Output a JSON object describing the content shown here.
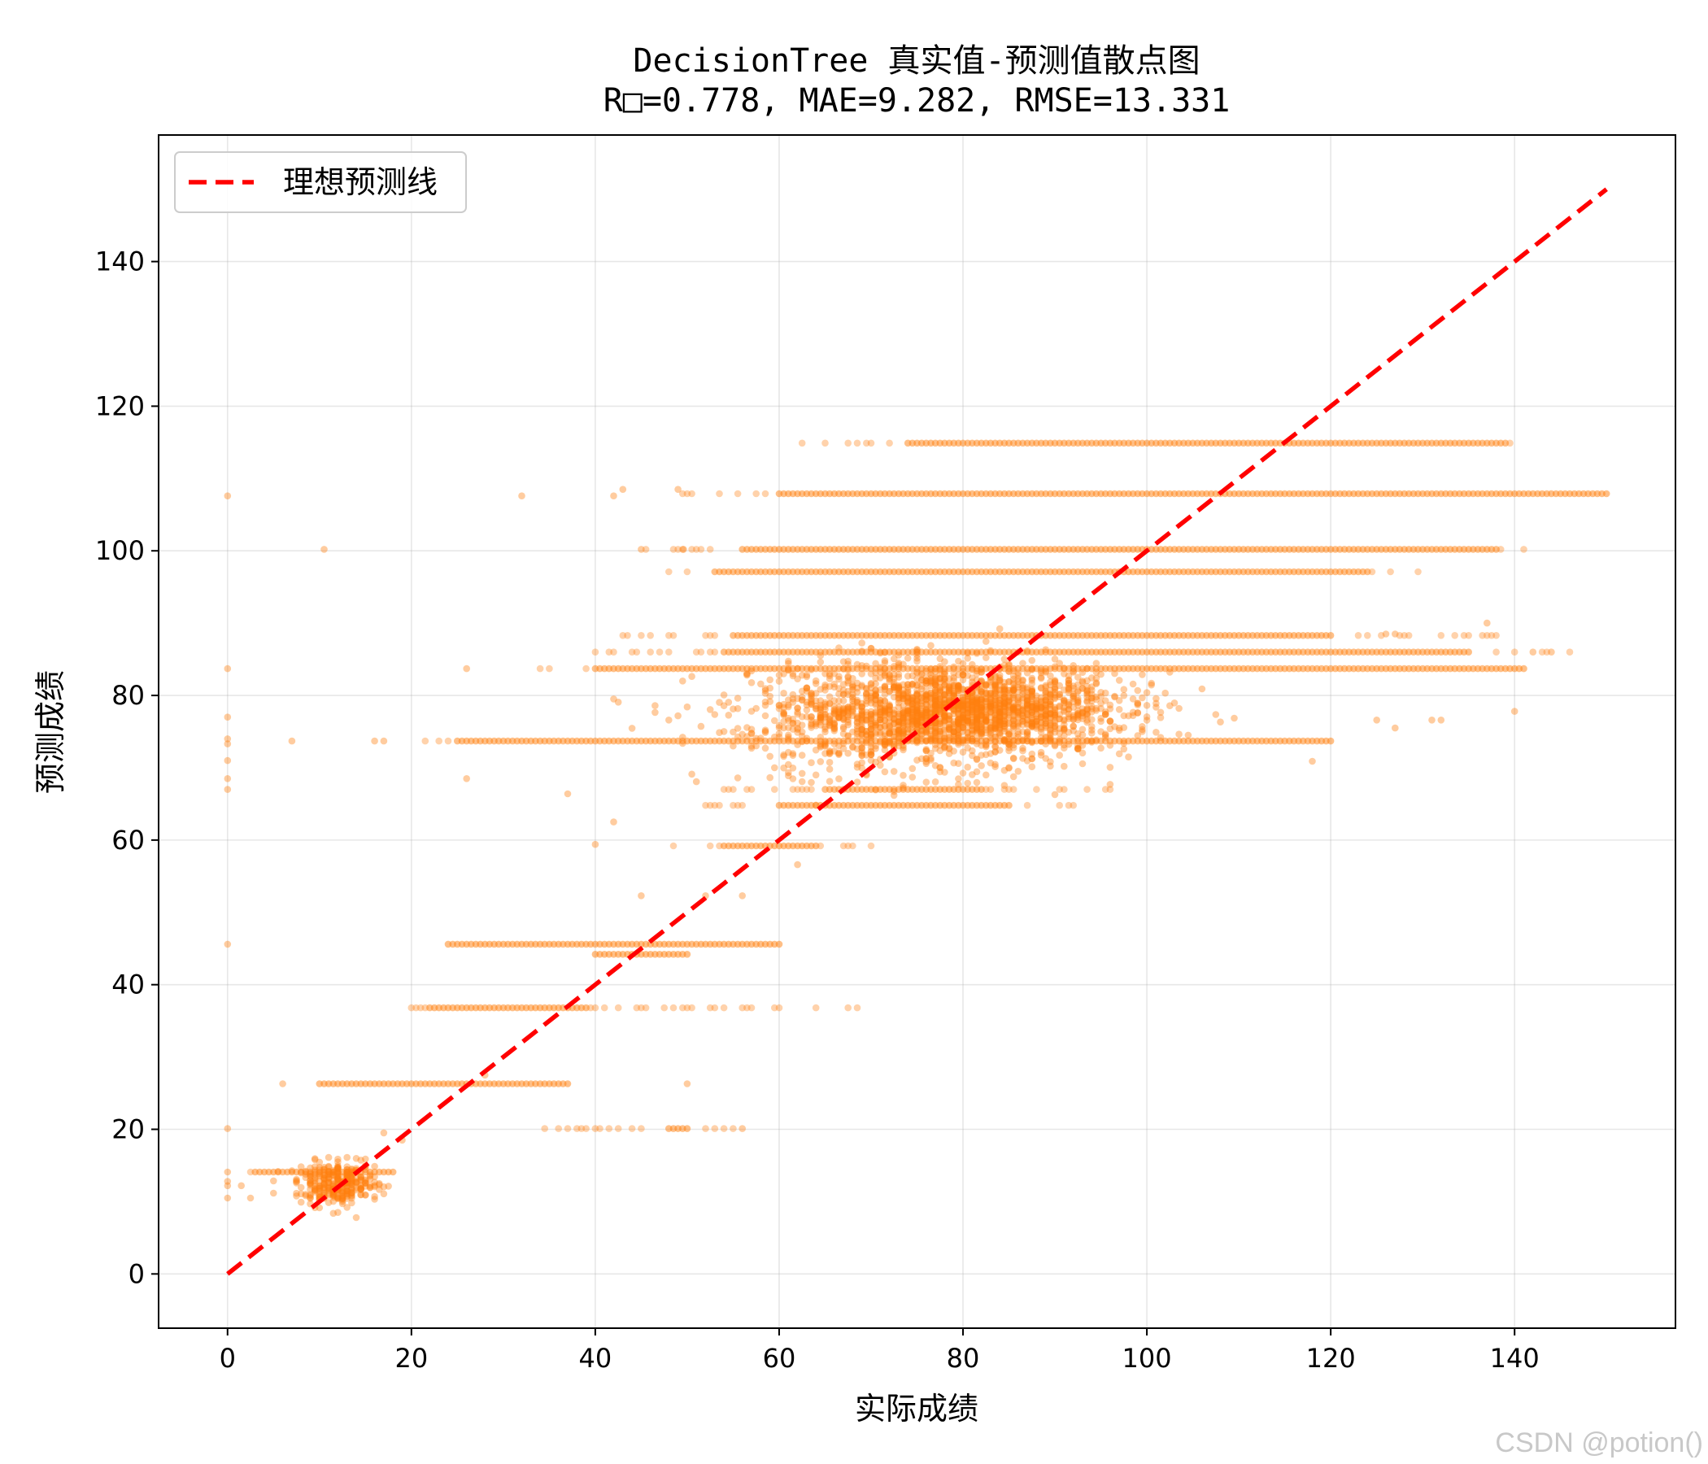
{
  "chart_data": {
    "type": "scatter",
    "title": "DecisionTree 真实值-预测值散点图",
    "subtitle": "R□=0.778, MAE=9.282, RMSE=13.331",
    "xlabel": "实际成绩",
    "ylabel": "预测成绩",
    "xlim": [
      -7.5,
      157.5
    ],
    "ylim": [
      -7.5,
      157.5
    ],
    "xticks": [
      0,
      20,
      40,
      60,
      80,
      100,
      120,
      140
    ],
    "yticks": [
      0,
      20,
      40,
      60,
      80,
      100,
      120,
      140
    ],
    "grid": true,
    "legend_position": "top-left",
    "legend": [
      {
        "name": "理想预测线",
        "color": "#ff0000",
        "style": "dashed"
      }
    ],
    "ideal_line": {
      "x": [
        0,
        150
      ],
      "y": [
        0,
        150
      ]
    },
    "point_color": "#ff7f0e",
    "bands": [
      {
        "y": 114.9,
        "x_from": 62,
        "x_to": 142,
        "dense_from": 74,
        "dense_to": 139
      },
      {
        "y": 107.9,
        "x_from": 49,
        "x_to": 150,
        "dense_from": 60,
        "dense_to": 150
      },
      {
        "y": 100.2,
        "x_from": 45,
        "x_to": 141,
        "dense_from": 56,
        "dense_to": 138
      },
      {
        "y": 97.1,
        "x_from": 47,
        "x_to": 130,
        "dense_from": 53,
        "dense_to": 124
      },
      {
        "y": 88.3,
        "x_from": 43,
        "x_to": 138,
        "dense_from": 55,
        "dense_to": 120
      },
      {
        "y": 86.0,
        "x_from": 38,
        "x_to": 146,
        "dense_from": 54,
        "dense_to": 135
      },
      {
        "y": 83.7,
        "x_from": 33,
        "x_to": 141,
        "dense_from": 40,
        "dense_to": 141
      },
      {
        "y": 73.7,
        "x_from": 20,
        "x_to": 120,
        "dense_from": 25,
        "dense_to": 120
      },
      {
        "y": 67.0,
        "x_from": 52,
        "x_to": 100,
        "dense_from": 65,
        "dense_to": 82
      },
      {
        "y": 64.8,
        "x_from": 50,
        "x_to": 92,
        "dense_from": 60,
        "dense_to": 85
      },
      {
        "y": 59.2,
        "x_from": 47,
        "x_to": 70,
        "dense_from": 54,
        "dense_to": 64
      },
      {
        "y": 45.6,
        "x_from": 24,
        "x_to": 60,
        "dense_from": 24,
        "dense_to": 60
      },
      {
        "y": 44.2,
        "x_from": 40,
        "x_to": 50,
        "dense_from": 40,
        "dense_to": 50
      },
      {
        "y": 36.8,
        "x_from": 20,
        "x_to": 70,
        "dense_from": 22,
        "dense_to": 39
      },
      {
        "y": 26.3,
        "x_from": 6,
        "x_to": 37,
        "dense_from": 10,
        "dense_to": 37
      },
      {
        "y": 20.1,
        "x_from": 33,
        "x_to": 56,
        "dense_from": 48,
        "dense_to": 50
      },
      {
        "y": 14.1,
        "x_from": 0,
        "x_to": 18,
        "dense_from": 3,
        "dense_to": 18
      }
    ],
    "clusters": [
      {
        "cx": 80,
        "cy": 78,
        "sx": 9,
        "sy": 3,
        "n": 1800
      },
      {
        "cx": 72,
        "cy": 76,
        "sx": 10,
        "sy": 4,
        "n": 500
      },
      {
        "cx": 12,
        "cy": 12.5,
        "sx": 2.2,
        "sy": 1.4,
        "n": 320
      }
    ],
    "outliers": [
      [
        0,
        107.6
      ],
      [
        10.5,
        100.2
      ],
      [
        0,
        83.7
      ],
      [
        0,
        77.0
      ],
      [
        0,
        74.0
      ],
      [
        0,
        73.3
      ],
      [
        0,
        71.0
      ],
      [
        0,
        68.5
      ],
      [
        0,
        67.0
      ],
      [
        0,
        45.6
      ],
      [
        0,
        20.1
      ],
      [
        0,
        14.1
      ],
      [
        0,
        12.8
      ],
      [
        0,
        12.2
      ],
      [
        0,
        10.5
      ],
      [
        1.5,
        12.2
      ],
      [
        2.5,
        10.5
      ],
      [
        7,
        73.7
      ],
      [
        16,
        73.7
      ],
      [
        17,
        73.7
      ],
      [
        26,
        83.7
      ],
      [
        26,
        68.5
      ],
      [
        43,
        108.5
      ],
      [
        42,
        107.6
      ],
      [
        32,
        107.6
      ],
      [
        49,
        108.5
      ],
      [
        45,
        100.2
      ],
      [
        49.6,
        100.2
      ],
      [
        40,
        59.4
      ],
      [
        42,
        62.5
      ],
      [
        45,
        52.3
      ],
      [
        52,
        52.3
      ],
      [
        56,
        52.3
      ],
      [
        56,
        20.1
      ],
      [
        50,
        26.3
      ],
      [
        6,
        26.3
      ],
      [
        28,
        27.5
      ],
      [
        19,
        18.5
      ],
      [
        17,
        19.5
      ],
      [
        14,
        7.8
      ],
      [
        13,
        9.2
      ],
      [
        137,
        90.0
      ],
      [
        142,
        86.0
      ],
      [
        144,
        86.0
      ],
      [
        140,
        77.8
      ],
      [
        131,
        76.6
      ],
      [
        127,
        75.5
      ],
      [
        125,
        76.6
      ],
      [
        118,
        70.9
      ],
      [
        132,
        76.6
      ],
      [
        62,
        56.6
      ],
      [
        37,
        66.4
      ],
      [
        126,
        88.5
      ],
      [
        127,
        88.5
      ]
    ]
  }
}
